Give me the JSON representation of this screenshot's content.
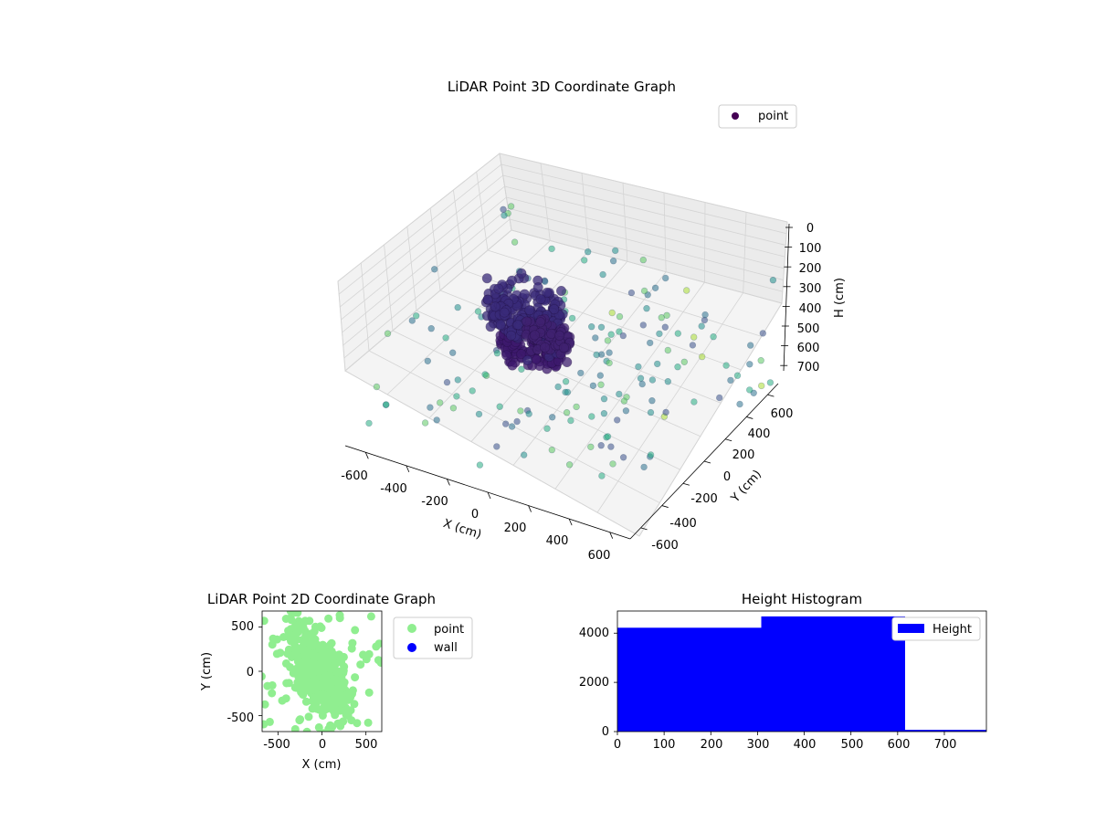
{
  "figure_background": "#ffffff",
  "chart_data": [
    {
      "type": "scatter",
      "projection": "3d",
      "title": "LiDAR Point 3D Coordinate Graph",
      "xlabel": "X (cm)",
      "ylabel": "Y (cm)",
      "zlabel": "H (cm)",
      "xlim": [
        -700,
        700
      ],
      "ylim": [
        -700,
        700
      ],
      "zlim": [
        0,
        800
      ],
      "z_inverted": true,
      "x_ticks": [
        "-600",
        "-400",
        "-200",
        "0",
        "200",
        "400",
        "600"
      ],
      "y_ticks": [
        "-600",
        "-400",
        "-200",
        "0",
        "200",
        "400",
        "600"
      ],
      "z_ticks": [
        "0",
        "100",
        "200",
        "300",
        "400",
        "500",
        "600",
        "700"
      ],
      "colormap": "viridis",
      "grid": true,
      "legend": {
        "position": "top-right",
        "entries": [
          {
            "label": "point",
            "color": "#440154"
          }
        ]
      },
      "series": [
        {
          "name": "point",
          "note_clusters": [
            {
              "center": [
                -50,
                60,
                560
              ],
              "radius": 150,
              "h_spread": 40,
              "count": 170,
              "color": "#3d1a6e"
            },
            {
              "center": [
                0,
                -80,
                300
              ],
              "radius": 180,
              "h_spread": 60,
              "count": 220,
              "color": "#3a2b7a"
            },
            {
              "center": [
                80,
                -20,
                430
              ],
              "radius": 110,
              "h_spread": 40,
              "count": 80,
              "color": "#402270"
            }
          ],
          "scattered": {
            "count": 170,
            "x_range": [
              -700,
              700
            ],
            "y_range": [
              -700,
              700
            ],
            "h_range": [
              20,
              720
            ]
          }
        }
      ]
    },
    {
      "type": "scatter",
      "title": "LiDAR Point 2D Coordinate Graph",
      "xlabel": "X (cm)",
      "ylabel": "Y (cm)",
      "xlim": [
        -680,
        680
      ],
      "ylim": [
        -680,
        680
      ],
      "x_ticks": [
        "-500",
        "0",
        "500"
      ],
      "y_ticks": [
        "-500",
        "0",
        "500"
      ],
      "legend": {
        "position": "outside-right",
        "entries": [
          {
            "label": "point",
            "color": "#90ee90"
          },
          {
            "label": "wall",
            "color": "#0000ff"
          }
        ]
      },
      "series": [
        {
          "name": "point",
          "color": "#90ee90",
          "cluster": {
            "center": [
              -30,
              -30
            ],
            "sx": 170,
            "sy": 260,
            "corr": -0.6,
            "count": 420
          },
          "outliers": 60
        },
        {
          "name": "wall",
          "color": "#0000ff",
          "count": 0
        }
      ]
    },
    {
      "type": "bar",
      "title": "Height Histogram",
      "xlim": [
        0,
        790
      ],
      "ylim": [
        0,
        4900
      ],
      "x_ticks": [
        "0",
        "100",
        "200",
        "300",
        "400",
        "500",
        "600",
        "700"
      ],
      "y_ticks": [
        "0",
        "2000",
        "4000"
      ],
      "legend": {
        "position": "top-right",
        "entries": [
          {
            "label": "Height",
            "color": "#0000ff"
          }
        ]
      },
      "series": [
        {
          "name": "Height",
          "color": "#0000ff",
          "bins": [
            {
              "start": 0,
              "end": 308,
              "count": 4220
            },
            {
              "start": 308,
              "end": 616,
              "count": 4680
            },
            {
              "start": 616,
              "end": 790,
              "count": 70
            }
          ]
        }
      ]
    }
  ]
}
